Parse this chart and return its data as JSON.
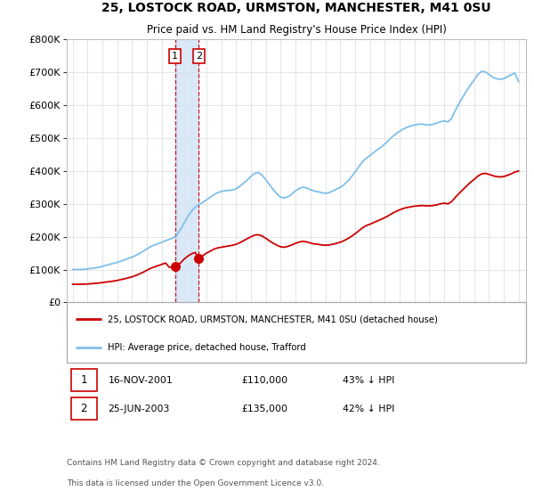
{
  "title": "25, LOSTOCK ROAD, URMSTON, MANCHESTER, M41 0SU",
  "subtitle": "Price paid vs. HM Land Registry's House Price Index (HPI)",
  "ylim": [
    0,
    800000
  ],
  "yticks": [
    0,
    100000,
    200000,
    300000,
    400000,
    500000,
    600000,
    700000,
    800000
  ],
  "ytick_labels": [
    "£0",
    "£100K",
    "£200K",
    "£300K",
    "£400K",
    "£500K",
    "£600K",
    "£700K",
    "£800K"
  ],
  "hpi_color": "#7fbfea",
  "price_color": "#cc0000",
  "vline_color": "#cc0000",
  "vspan_color": "#cce0f5",
  "transaction1_date": 2001.88,
  "transaction1_price": 110000,
  "transaction2_date": 2003.48,
  "transaction2_price": 135000,
  "legend_label_red": "25, LOSTOCK ROAD, URMSTON, MANCHESTER, M41 0SU (detached house)",
  "legend_label_blue": "HPI: Average price, detached house, Trafford",
  "table_row1": [
    "1",
    "16-NOV-2001",
    "£110,000",
    "43% ↓ HPI"
  ],
  "table_row2": [
    "2",
    "25-JUN-2003",
    "£135,000",
    "42% ↓ HPI"
  ],
  "footer": "Contains HM Land Registry data © Crown copyright and database right 2024.\nThis data is licensed under the Open Government Licence v3.0.",
  "background_color": "#ffffff",
  "grid_color": "#e0e0e0",
  "hpi_data": [
    [
      1995.0,
      100000
    ],
    [
      1995.25,
      100500
    ],
    [
      1995.5,
      100200
    ],
    [
      1995.75,
      100800
    ],
    [
      1996.0,
      102000
    ],
    [
      1996.25,
      103500
    ],
    [
      1996.5,
      105000
    ],
    [
      1996.75,
      107000
    ],
    [
      1997.0,
      110000
    ],
    [
      1997.25,
      113000
    ],
    [
      1997.5,
      116000
    ],
    [
      1997.75,
      119000
    ],
    [
      1998.0,
      122000
    ],
    [
      1998.25,
      126000
    ],
    [
      1998.5,
      130000
    ],
    [
      1998.75,
      134000
    ],
    [
      1999.0,
      138000
    ],
    [
      1999.25,
      143000
    ],
    [
      1999.5,
      149000
    ],
    [
      1999.75,
      156000
    ],
    [
      2000.0,
      163000
    ],
    [
      2000.25,
      170000
    ],
    [
      2000.5,
      175000
    ],
    [
      2000.75,
      179000
    ],
    [
      2001.0,
      183000
    ],
    [
      2001.25,
      188000
    ],
    [
      2001.5,
      192000
    ],
    [
      2001.75,
      196000
    ],
    [
      2002.0,
      205000
    ],
    [
      2002.25,
      222000
    ],
    [
      2002.5,
      242000
    ],
    [
      2002.75,
      262000
    ],
    [
      2003.0,
      278000
    ],
    [
      2003.25,
      290000
    ],
    [
      2003.5,
      298000
    ],
    [
      2003.75,
      304000
    ],
    [
      2004.0,
      312000
    ],
    [
      2004.25,
      320000
    ],
    [
      2004.5,
      328000
    ],
    [
      2004.75,
      334000
    ],
    [
      2005.0,
      338000
    ],
    [
      2005.25,
      340000
    ],
    [
      2005.5,
      341000
    ],
    [
      2005.75,
      342000
    ],
    [
      2006.0,
      346000
    ],
    [
      2006.25,
      354000
    ],
    [
      2006.5,
      363000
    ],
    [
      2006.75,
      373000
    ],
    [
      2007.0,
      384000
    ],
    [
      2007.25,
      393000
    ],
    [
      2007.5,
      395000
    ],
    [
      2007.75,
      387000
    ],
    [
      2008.0,
      373000
    ],
    [
      2008.25,
      358000
    ],
    [
      2008.5,
      343000
    ],
    [
      2008.75,
      330000
    ],
    [
      2009.0,
      320000
    ],
    [
      2009.25,
      318000
    ],
    [
      2009.5,
      322000
    ],
    [
      2009.75,
      330000
    ],
    [
      2010.0,
      340000
    ],
    [
      2010.25,
      347000
    ],
    [
      2010.5,
      351000
    ],
    [
      2010.75,
      348000
    ],
    [
      2011.0,
      343000
    ],
    [
      2011.25,
      339000
    ],
    [
      2011.5,
      337000
    ],
    [
      2011.75,
      334000
    ],
    [
      2012.0,
      332000
    ],
    [
      2012.25,
      334000
    ],
    [
      2012.5,
      339000
    ],
    [
      2012.75,
      345000
    ],
    [
      2013.0,
      350000
    ],
    [
      2013.25,
      358000
    ],
    [
      2013.5,
      369000
    ],
    [
      2013.75,
      382000
    ],
    [
      2014.0,
      397000
    ],
    [
      2014.25,
      413000
    ],
    [
      2014.5,
      428000
    ],
    [
      2014.75,
      439000
    ],
    [
      2015.0,
      447000
    ],
    [
      2015.25,
      456000
    ],
    [
      2015.5,
      465000
    ],
    [
      2015.75,
      473000
    ],
    [
      2016.0,
      482000
    ],
    [
      2016.25,
      493000
    ],
    [
      2016.5,
      504000
    ],
    [
      2016.75,
      513000
    ],
    [
      2017.0,
      521000
    ],
    [
      2017.25,
      528000
    ],
    [
      2017.5,
      533000
    ],
    [
      2017.75,
      537000
    ],
    [
      2018.0,
      540000
    ],
    [
      2018.25,
      542000
    ],
    [
      2018.5,
      543000
    ],
    [
      2018.75,
      541000
    ],
    [
      2019.0,
      540000
    ],
    [
      2019.25,
      542000
    ],
    [
      2019.5,
      546000
    ],
    [
      2019.75,
      550000
    ],
    [
      2020.0,
      553000
    ],
    [
      2020.25,
      549000
    ],
    [
      2020.5,
      561000
    ],
    [
      2020.75,
      585000
    ],
    [
      2021.0,
      606000
    ],
    [
      2021.25,
      625000
    ],
    [
      2021.5,
      644000
    ],
    [
      2021.75,
      661000
    ],
    [
      2022.0,
      676000
    ],
    [
      2022.25,
      693000
    ],
    [
      2022.5,
      703000
    ],
    [
      2022.75,
      702000
    ],
    [
      2023.0,
      694000
    ],
    [
      2023.25,
      686000
    ],
    [
      2023.5,
      681000
    ],
    [
      2023.75,
      679000
    ],
    [
      2024.0,
      681000
    ],
    [
      2024.25,
      687000
    ],
    [
      2024.5,
      693000
    ],
    [
      2024.75,
      698000
    ],
    [
      2025.0,
      672000
    ]
  ],
  "price_data": [
    [
      1995.0,
      55000
    ],
    [
      1995.25,
      55200
    ],
    [
      1995.5,
      55400
    ],
    [
      1995.75,
      55600
    ],
    [
      1996.0,
      56000
    ],
    [
      1996.25,
      57000
    ],
    [
      1996.5,
      58000
    ],
    [
      1996.75,
      59000
    ],
    [
      1997.0,
      60500
    ],
    [
      1997.25,
      62000
    ],
    [
      1997.5,
      63500
    ],
    [
      1997.75,
      65000
    ],
    [
      1998.0,
      67000
    ],
    [
      1998.25,
      69500
    ],
    [
      1998.5,
      72000
    ],
    [
      1998.75,
      75000
    ],
    [
      1999.0,
      78000
    ],
    [
      1999.25,
      82000
    ],
    [
      1999.5,
      87000
    ],
    [
      1999.75,
      92000
    ],
    [
      2000.0,
      98000
    ],
    [
      2000.25,
      104000
    ],
    [
      2000.5,
      108000
    ],
    [
      2000.75,
      112000
    ],
    [
      2001.0,
      116000
    ],
    [
      2001.25,
      120000
    ],
    [
      2001.5,
      107000
    ],
    [
      2001.75,
      107000
    ],
    [
      2001.88,
      110000
    ],
    [
      2002.0,
      112000
    ],
    [
      2002.25,
      120000
    ],
    [
      2002.5,
      132000
    ],
    [
      2002.75,
      141000
    ],
    [
      2003.0,
      148000
    ],
    [
      2003.25,
      152000
    ],
    [
      2003.48,
      135000
    ],
    [
      2003.5,
      137000
    ],
    [
      2003.75,
      142000
    ],
    [
      2004.0,
      150000
    ],
    [
      2004.25,
      156000
    ],
    [
      2004.5,
      162000
    ],
    [
      2004.75,
      166000
    ],
    [
      2005.0,
      168000
    ],
    [
      2005.25,
      170000
    ],
    [
      2005.5,
      172000
    ],
    [
      2005.75,
      174000
    ],
    [
      2006.0,
      177000
    ],
    [
      2006.25,
      182000
    ],
    [
      2006.5,
      188000
    ],
    [
      2006.75,
      194000
    ],
    [
      2007.0,
      200000
    ],
    [
      2007.25,
      205000
    ],
    [
      2007.5,
      206000
    ],
    [
      2007.75,
      202000
    ],
    [
      2008.0,
      195000
    ],
    [
      2008.25,
      187000
    ],
    [
      2008.5,
      180000
    ],
    [
      2008.75,
      174000
    ],
    [
      2009.0,
      169000
    ],
    [
      2009.25,
      168000
    ],
    [
      2009.5,
      171000
    ],
    [
      2009.75,
      175000
    ],
    [
      2010.0,
      180000
    ],
    [
      2010.25,
      184000
    ],
    [
      2010.5,
      186000
    ],
    [
      2010.75,
      184000
    ],
    [
      2011.0,
      181000
    ],
    [
      2011.25,
      178000
    ],
    [
      2011.5,
      177000
    ],
    [
      2011.75,
      175000
    ],
    [
      2012.0,
      174000
    ],
    [
      2012.25,
      175000
    ],
    [
      2012.5,
      177000
    ],
    [
      2012.75,
      180000
    ],
    [
      2013.0,
      183000
    ],
    [
      2013.25,
      188000
    ],
    [
      2013.5,
      194000
    ],
    [
      2013.75,
      201000
    ],
    [
      2014.0,
      209000
    ],
    [
      2014.25,
      218000
    ],
    [
      2014.5,
      227000
    ],
    [
      2014.75,
      234000
    ],
    [
      2015.0,
      238000
    ],
    [
      2015.25,
      243000
    ],
    [
      2015.5,
      248000
    ],
    [
      2015.75,
      253000
    ],
    [
      2016.0,
      258000
    ],
    [
      2016.25,
      264000
    ],
    [
      2016.5,
      271000
    ],
    [
      2016.75,
      277000
    ],
    [
      2017.0,
      282000
    ],
    [
      2017.25,
      286000
    ],
    [
      2017.5,
      289000
    ],
    [
      2017.75,
      291000
    ],
    [
      2018.0,
      293000
    ],
    [
      2018.25,
      294000
    ],
    [
      2018.5,
      295000
    ],
    [
      2018.75,
      294000
    ],
    [
      2019.0,
      294000
    ],
    [
      2019.25,
      295000
    ],
    [
      2019.5,
      297000
    ],
    [
      2019.75,
      300000
    ],
    [
      2020.0,
      302000
    ],
    [
      2020.25,
      300000
    ],
    [
      2020.5,
      307000
    ],
    [
      2020.75,
      320000
    ],
    [
      2021.0,
      332000
    ],
    [
      2021.25,
      343000
    ],
    [
      2021.5,
      354000
    ],
    [
      2021.75,
      365000
    ],
    [
      2022.0,
      374000
    ],
    [
      2022.25,
      384000
    ],
    [
      2022.5,
      391000
    ],
    [
      2022.75,
      393000
    ],
    [
      2023.0,
      390000
    ],
    [
      2023.25,
      386000
    ],
    [
      2023.5,
      383000
    ],
    [
      2023.75,
      382000
    ],
    [
      2024.0,
      383000
    ],
    [
      2024.25,
      387000
    ],
    [
      2024.5,
      391000
    ],
    [
      2024.75,
      397000
    ],
    [
      2025.0,
      400000
    ]
  ]
}
